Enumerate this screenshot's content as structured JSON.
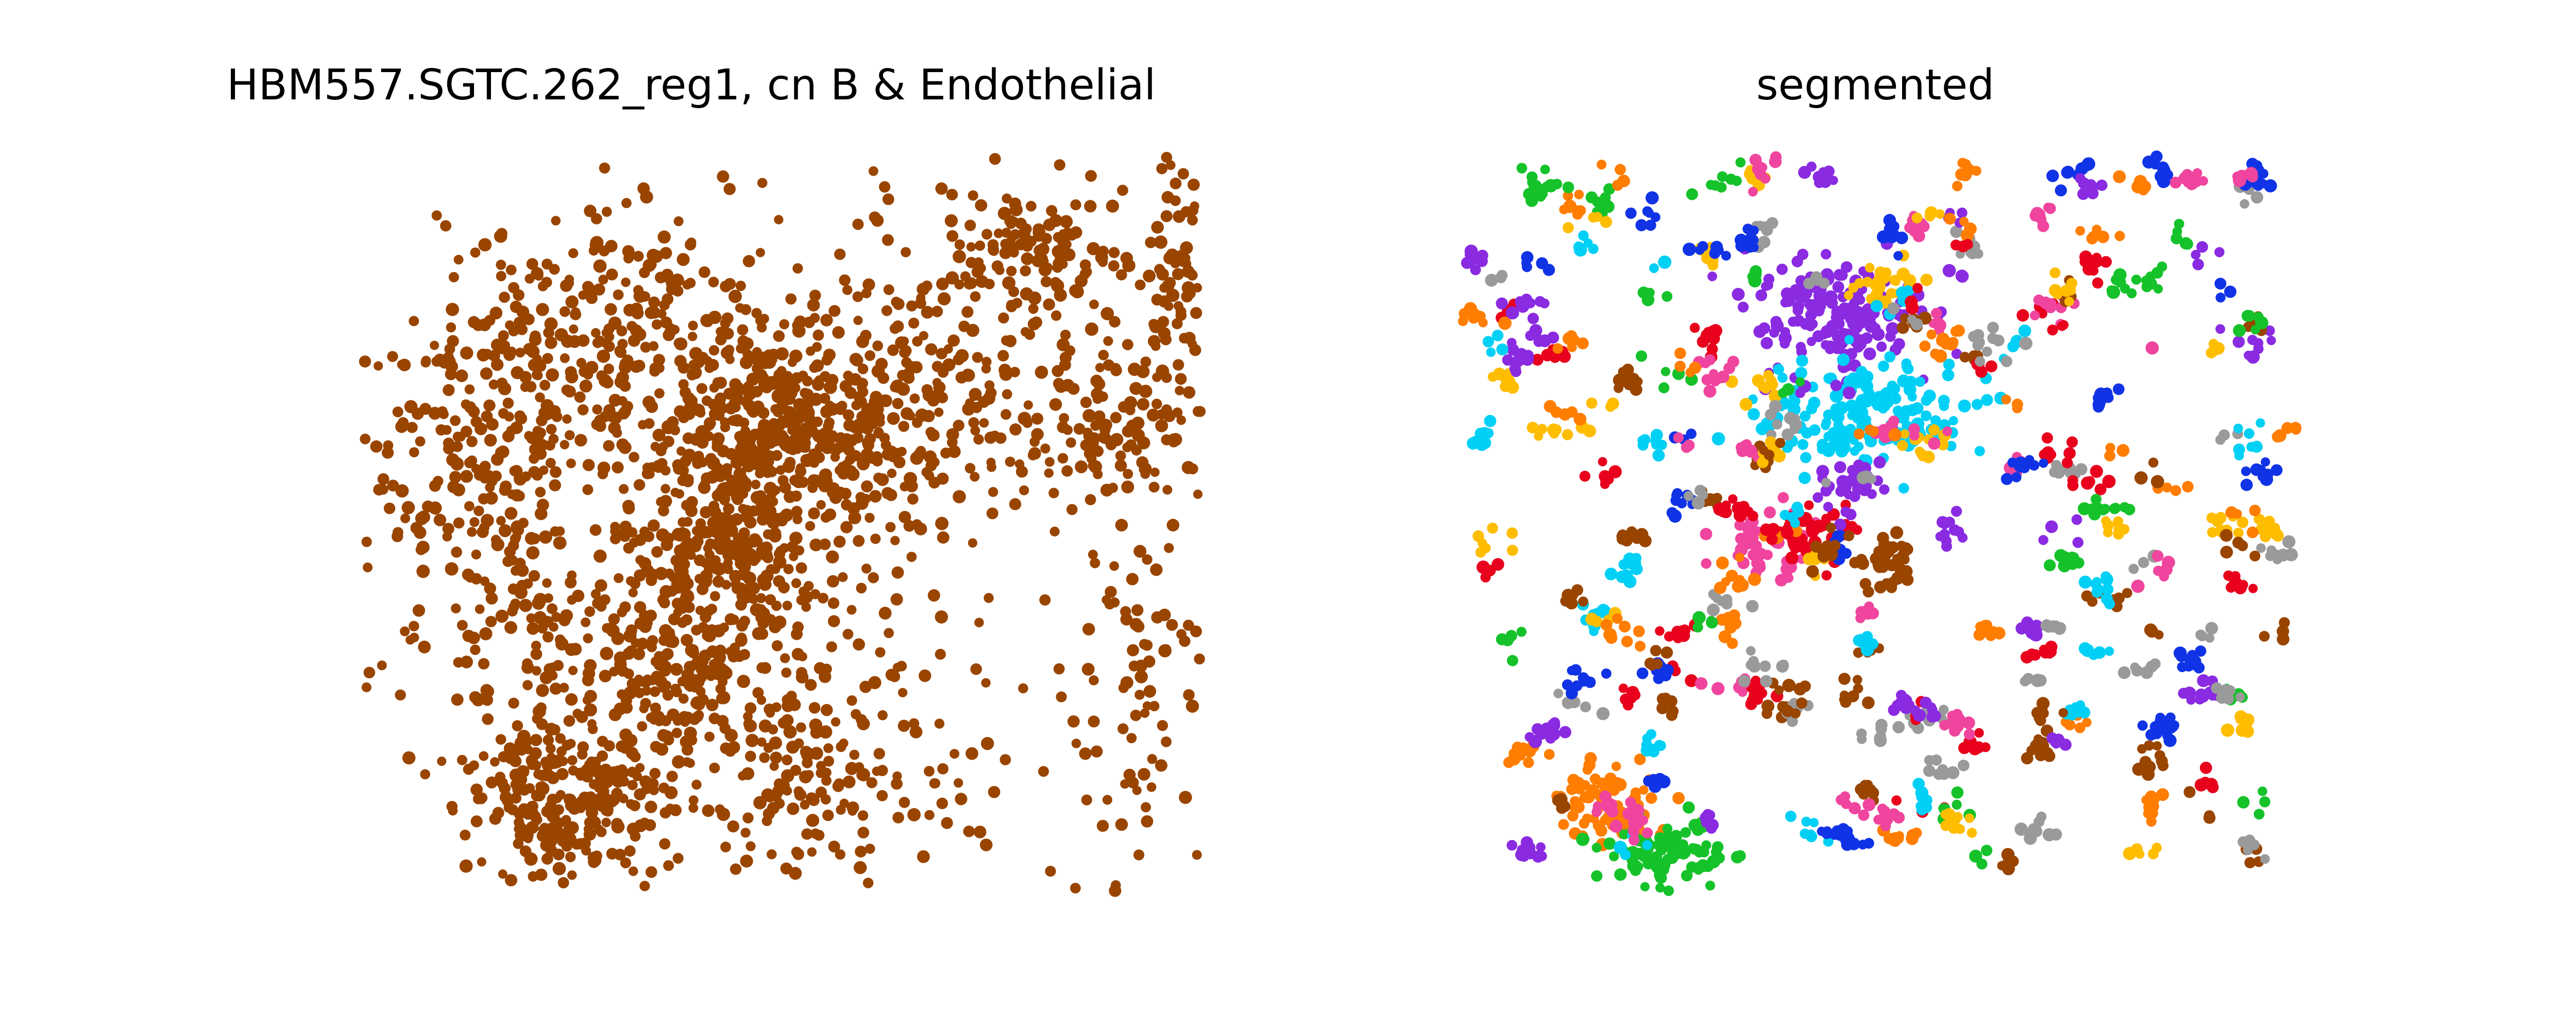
{
  "chart_data": [
    {
      "type": "scatter",
      "title": "HBM557.SGTC.262_reg1, cn B & Endothelial",
      "xlabel": "",
      "ylabel": "",
      "axes_visible": false,
      "grid": false,
      "color": "#994500",
      "regions": [
        {
          "cx": 0.48,
          "cy": 0.38,
          "sx": 0.06,
          "sy": 0.07,
          "n": 320
        },
        {
          "cx": 0.42,
          "cy": 0.55,
          "sx": 0.06,
          "sy": 0.08,
          "n": 300
        },
        {
          "cx": 0.25,
          "cy": 0.88,
          "sx": 0.06,
          "sy": 0.05,
          "n": 260
        },
        {
          "cx": 0.3,
          "cy": 0.25,
          "sx": 0.1,
          "sy": 0.08,
          "n": 260
        },
        {
          "cx": 0.15,
          "cy": 0.45,
          "sx": 0.07,
          "sy": 0.12,
          "n": 220
        },
        {
          "cx": 0.35,
          "cy": 0.72,
          "sx": 0.12,
          "sy": 0.06,
          "n": 240
        },
        {
          "cx": 0.65,
          "cy": 0.35,
          "sx": 0.07,
          "sy": 0.08,
          "n": 180
        },
        {
          "cx": 0.8,
          "cy": 0.13,
          "sx": 0.05,
          "sy": 0.04,
          "n": 110
        },
        {
          "cx": 0.88,
          "cy": 0.35,
          "sx": 0.06,
          "sy": 0.1,
          "n": 120
        },
        {
          "cx": 0.97,
          "cy": 0.18,
          "sx": 0.02,
          "sy": 0.1,
          "n": 80
        },
        {
          "cx": 0.55,
          "cy": 0.85,
          "sx": 0.08,
          "sy": 0.06,
          "n": 120
        },
        {
          "cx": 0.5,
          "cy": 0.5,
          "sx": 0.3,
          "sy": 0.3,
          "n": 350
        },
        {
          "cx": 0.93,
          "cy": 0.72,
          "sx": 0.04,
          "sy": 0.12,
          "n": 70
        }
      ]
    },
    {
      "type": "scatter",
      "title": "segmented",
      "xlabel": "",
      "ylabel": "",
      "axes_visible": false,
      "grid": false,
      "palette": [
        "#8a2be2",
        "#00d0f5",
        "#e8001c",
        "#f0459e",
        "#15c22a",
        "#1133e6",
        "#ff7d00",
        "#ffbd00",
        "#9a9a9a",
        "#994500"
      ],
      "large_clusters": [
        {
          "cx": 0.45,
          "cy": 0.22,
          "sx": 0.05,
          "sy": 0.04,
          "n": 170,
          "color": "#8a2be2"
        },
        {
          "cx": 0.48,
          "cy": 0.35,
          "sx": 0.06,
          "sy": 0.035,
          "n": 170,
          "color": "#00d0f5"
        },
        {
          "cx": 0.37,
          "cy": 0.53,
          "sx": 0.025,
          "sy": 0.025,
          "n": 50,
          "color": "#f0459e"
        },
        {
          "cx": 0.42,
          "cy": 0.52,
          "sx": 0.02,
          "sy": 0.02,
          "n": 45,
          "color": "#e8001c"
        },
        {
          "cx": 0.51,
          "cy": 0.55,
          "sx": 0.02,
          "sy": 0.02,
          "n": 40,
          "color": "#994500"
        },
        {
          "cx": 0.18,
          "cy": 0.88,
          "sx": 0.03,
          "sy": 0.025,
          "n": 80,
          "color": "#ff7d00"
        },
        {
          "cx": 0.25,
          "cy": 0.95,
          "sx": 0.035,
          "sy": 0.02,
          "n": 90,
          "color": "#15c22a"
        },
        {
          "cx": 0.47,
          "cy": 0.45,
          "sx": 0.02,
          "sy": 0.02,
          "n": 35,
          "color": "#8a2be2"
        },
        {
          "cx": 0.5,
          "cy": 0.18,
          "sx": 0.02,
          "sy": 0.015,
          "n": 25,
          "color": "#ffbd00"
        }
      ]
    }
  ]
}
